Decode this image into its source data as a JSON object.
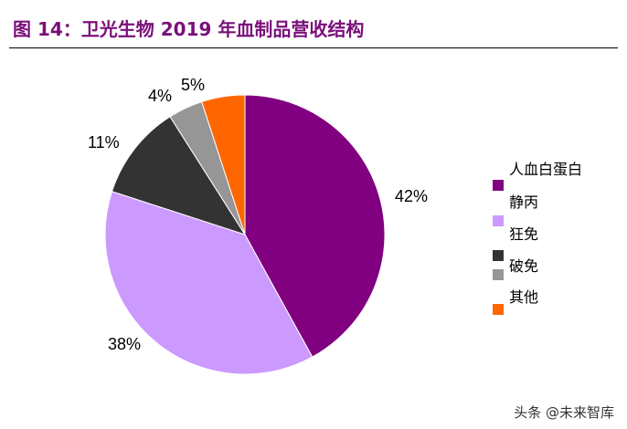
{
  "title": "图 14：卫光生物 2019 年血制品营收结构",
  "watermark": "头条 @未来智库",
  "chart_data": {
    "type": "pie",
    "categories": [
      "人血白蛋白",
      "静丙",
      "狂免",
      "破免",
      "其他"
    ],
    "values": [
      42,
      38,
      11,
      4,
      5
    ],
    "labels": [
      "42%",
      "38%",
      "11%",
      "4%",
      "5%"
    ],
    "colors": [
      "#800080",
      "#cc99ff",
      "#333333",
      "#969696",
      "#ff6600"
    ],
    "legend": "right"
  }
}
